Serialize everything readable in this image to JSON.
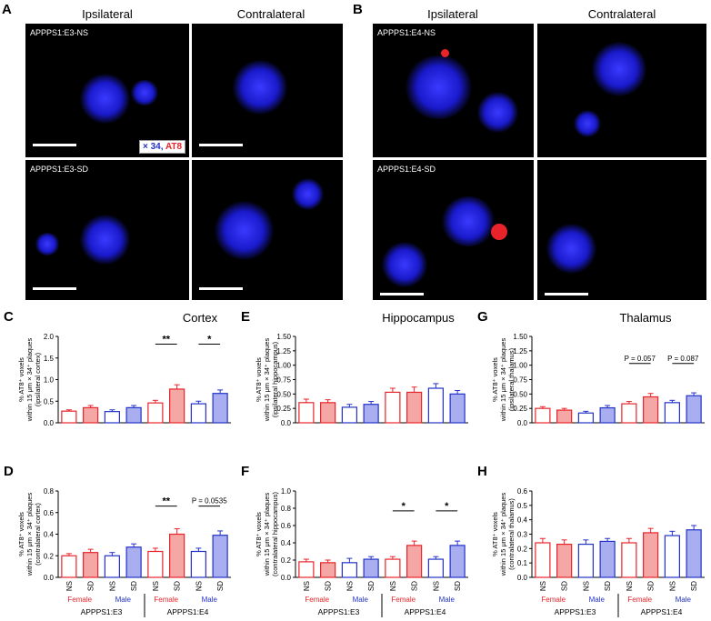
{
  "panels": {
    "A": {
      "letter": "A",
      "col_left": "Ipsilateral",
      "col_right": "Contralateral",
      "row_top": "APPPS1:E3-NS",
      "row_bottom": "APPPS1:E3-SD",
      "legend_blue": "× 34,",
      "legend_red": " AT8"
    },
    "B": {
      "letter": "B",
      "col_left": "Ipsilateral",
      "col_right": "Contralateral",
      "row_top": "APPPS1:E4-NS",
      "row_bottom": "APPPS1:E4-SD"
    }
  },
  "chart_titles": {
    "cortex": "Cortex",
    "hippocampus": "Hippocampus",
    "thalamus": "Thalamus"
  },
  "letters": {
    "C": "C",
    "D": "D",
    "E": "E",
    "F": "F",
    "G": "G",
    "H": "H"
  },
  "colors": {
    "female": "#e8242a",
    "male": "#2232c8",
    "female_fill": "#f4a7a4",
    "male_fill": "#a9aef0"
  },
  "x_groups": {
    "conditions": [
      "NS",
      "SD",
      "NS",
      "SD",
      "NS",
      "SD",
      "NS",
      "SD"
    ],
    "sex": [
      "Female",
      "Male",
      "Female",
      "Male"
    ],
    "genotypes": [
      "APPPS1:E3",
      "APPPS1:E4"
    ]
  },
  "chart_data": [
    {
      "id": "C",
      "type": "bar",
      "ylabel": [
        "% AT8⁺ voxels",
        "within 15 μm × 34⁺ plaques",
        "(ipsilateral cortex)"
      ],
      "ylim": [
        0,
        2.0
      ],
      "yticks": [
        "0.0",
        "0.5",
        "1.0",
        "1.5",
        "2.0"
      ],
      "ytick_values": [
        0,
        0.5,
        1.0,
        1.5,
        2.0
      ],
      "values": [
        0.27,
        0.35,
        0.26,
        0.35,
        0.46,
        0.78,
        0.44,
        0.68
      ],
      "errors": [
        0.03,
        0.05,
        0.04,
        0.05,
        0.06,
        0.1,
        0.06,
        0.08
      ],
      "annotations": [
        {
          "from": 4,
          "to": 5,
          "text": "**",
          "y": 1.82
        },
        {
          "from": 6,
          "to": 7,
          "text": "*",
          "y": 1.82
        }
      ]
    },
    {
      "id": "D",
      "type": "bar",
      "ylabel": [
        "% AT8⁺ voxels",
        "within 15 μm × 34⁺ plaques",
        "(contralateral cortex)"
      ],
      "ylim": [
        0,
        0.8
      ],
      "yticks": [
        "0.0",
        "0.2",
        "0.4",
        "0.6",
        "0.8"
      ],
      "ytick_values": [
        0,
        0.2,
        0.4,
        0.6,
        0.8
      ],
      "values": [
        0.2,
        0.23,
        0.2,
        0.28,
        0.24,
        0.4,
        0.24,
        0.39
      ],
      "errors": [
        0.02,
        0.03,
        0.03,
        0.03,
        0.03,
        0.05,
        0.03,
        0.04
      ],
      "annotations": [
        {
          "from": 4,
          "to": 5,
          "text": "**",
          "y": 0.66
        },
        {
          "from": 6,
          "to": 7,
          "text": "P = 0.0535",
          "y": 0.66
        }
      ]
    },
    {
      "id": "E",
      "type": "bar",
      "ylabel": [
        "% AT8⁺ voxels",
        "within 15 μm × 34⁺ plaques",
        "(ipsilateral hippocampus)"
      ],
      "ylim": [
        0,
        1.5
      ],
      "yticks": [
        "0.0",
        "0.25",
        "0.50",
        "0.75",
        "1.00",
        "1.25",
        "1.50"
      ],
      "ytick_values": [
        0,
        0.25,
        0.5,
        0.75,
        1.0,
        1.25,
        1.5
      ],
      "values": [
        0.35,
        0.35,
        0.27,
        0.32,
        0.53,
        0.53,
        0.6,
        0.5
      ],
      "errors": [
        0.06,
        0.05,
        0.05,
        0.05,
        0.07,
        0.09,
        0.08,
        0.06
      ],
      "annotations": []
    },
    {
      "id": "F",
      "type": "bar",
      "ylabel": [
        "% AT8⁺ voxels",
        "within 15 μm × 34⁺ plaques",
        "(contralateral hippocampus)"
      ],
      "ylim": [
        0,
        1.0
      ],
      "yticks": [
        "0.0",
        "0.2",
        "0.4",
        "0.6",
        "0.8",
        "1.0"
      ],
      "ytick_values": [
        0,
        0.2,
        0.4,
        0.6,
        0.8,
        1.0
      ],
      "values": [
        0.18,
        0.17,
        0.17,
        0.21,
        0.21,
        0.37,
        0.21,
        0.37
      ],
      "errors": [
        0.03,
        0.03,
        0.05,
        0.03,
        0.03,
        0.05,
        0.03,
        0.05
      ],
      "annotations": [
        {
          "from": 4,
          "to": 5,
          "text": "*",
          "y": 0.77
        },
        {
          "from": 6,
          "to": 7,
          "text": "*",
          "y": 0.77
        }
      ]
    },
    {
      "id": "G",
      "type": "bar",
      "ylabel": [
        "% AT8⁺ voxels",
        "within 15 μm × 34⁺ plaques",
        "(ipsilateral thalamus)"
      ],
      "ylim": [
        0,
        1.5
      ],
      "yticks": [
        "0.0",
        "0.25",
        "0.50",
        "0.75",
        "1.00",
        "1.25",
        "1.50"
      ],
      "ytick_values": [
        0,
        0.25,
        0.5,
        0.75,
        1.0,
        1.25,
        1.5
      ],
      "values": [
        0.25,
        0.22,
        0.17,
        0.26,
        0.33,
        0.45,
        0.35,
        0.47
      ],
      "errors": [
        0.03,
        0.03,
        0.03,
        0.04,
        0.04,
        0.06,
        0.04,
        0.05
      ],
      "annotations": [
        {
          "from": 4,
          "to": 5,
          "text": "P = 0.057",
          "y": 1.03
        },
        {
          "from": 6,
          "to": 7,
          "text": "P = 0.087",
          "y": 1.03
        }
      ]
    },
    {
      "id": "H",
      "type": "bar",
      "ylabel": [
        "% AT8⁺ voxels",
        "within 15 μm × 34⁺ plaques",
        "(contralateral thalamus)"
      ],
      "ylim": [
        0,
        0.6
      ],
      "yticks": [
        "0.0",
        "0.1",
        "0.2",
        "0.3",
        "0.4",
        "0.5",
        "0.6"
      ],
      "ytick_values": [
        0,
        0.1,
        0.2,
        0.3,
        0.4,
        0.5,
        0.6
      ],
      "values": [
        0.24,
        0.23,
        0.23,
        0.25,
        0.24,
        0.31,
        0.29,
        0.33
      ],
      "errors": [
        0.03,
        0.03,
        0.03,
        0.02,
        0.03,
        0.03,
        0.03,
        0.03
      ],
      "annotations": []
    }
  ]
}
